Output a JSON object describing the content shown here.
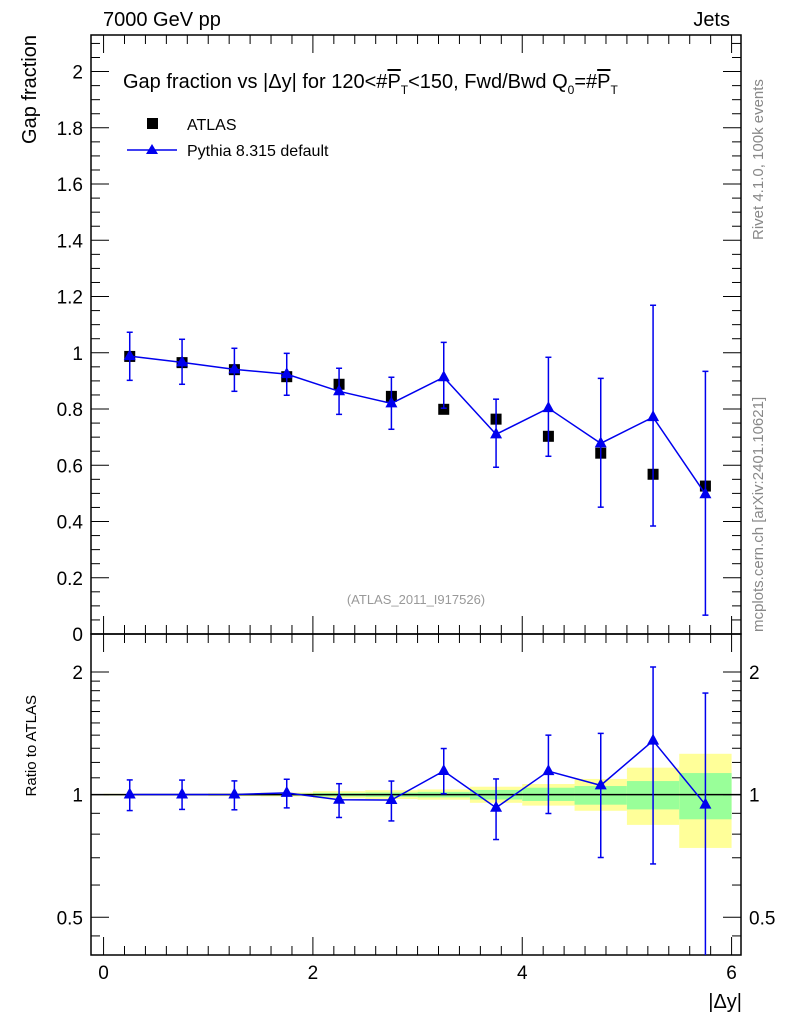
{
  "header": {
    "left": "7000 GeV pp",
    "right": "Jets"
  },
  "side_labels": {
    "rivet": "Rivet 4.1.0,  100k events",
    "mcplots": "mcplots.cern.ch [arXiv:2401.10621]"
  },
  "analysis_label": "(ATLAS_2011_I917526)",
  "colors": {
    "data": "#000000",
    "mc": "#0000ee",
    "band_outer": "#ffff99",
    "band_inner": "#99ff99"
  },
  "chart_data": [
    {
      "type": "scatter",
      "title": "Gap fraction vs |Δy| for 120<#P_T<150, Fwd/Bwd Q_0=#P_T",
      "title_parts": {
        "pre": "Gap fraction vs |Δy| for 120<#",
        "p1": "P",
        "t1": "T",
        "mid": "<150, Fwd/Bwd Q",
        "q0": "0",
        "eq": "=#",
        "p2": "P",
        "t2": "T"
      },
      "xlabel": "|Δy|",
      "ylabel": "Gap fraction",
      "xlim": [
        -0.12,
        6.09
      ],
      "ylim": [
        0,
        2.13
      ],
      "yticks": [
        "0",
        "0.2",
        "0.4",
        "0.6",
        "0.8",
        "1",
        "1.2",
        "1.4",
        "1.6",
        "1.8",
        "2"
      ],
      "legend": {
        "placement": "top-left",
        "entries": [
          "ATLAS",
          "Pythia 8.315 default"
        ]
      },
      "x": [
        0.25,
        0.75,
        1.25,
        1.75,
        2.25,
        2.75,
        3.25,
        3.75,
        4.25,
        4.75,
        5.25,
        5.75
      ],
      "series": [
        {
          "name": "ATLAS",
          "marker": "square",
          "values": [
            0.987,
            0.965,
            0.94,
            0.915,
            0.888,
            0.845,
            0.799,
            0.764,
            0.703,
            0.643,
            0.568,
            0.526
          ]
        },
        {
          "name": "Pythia 8.315 default",
          "marker": "triangle",
          "values": [
            0.988,
            0.966,
            0.941,
            0.924,
            0.863,
            0.82,
            0.913,
            0.71,
            0.803,
            0.678,
            0.771,
            0.497
          ],
          "err_low": [
            0.902,
            0.888,
            0.863,
            0.849,
            0.781,
            0.728,
            0.803,
            0.593,
            0.632,
            0.451,
            0.384,
            0.067
          ],
          "err_high": [
            1.073,
            1.048,
            1.016,
            0.998,
            0.945,
            0.913,
            1.037,
            0.835,
            0.984,
            0.909,
            1.169,
            0.934
          ]
        }
      ]
    },
    {
      "type": "line",
      "ylabel": "Ratio to ATLAS",
      "xlabel": "|Δy|",
      "yscale": "log",
      "ylim": [
        0.404,
        2.48
      ],
      "xticks": [
        "0",
        "2",
        "4",
        "6"
      ],
      "yticks": [
        "0.5",
        "1",
        "2"
      ],
      "bins": [
        [
          0,
          0.5
        ],
        [
          0.5,
          1
        ],
        [
          1,
          1.5
        ],
        [
          1.5,
          2
        ],
        [
          2,
          2.5
        ],
        [
          2.5,
          3
        ],
        [
          3,
          3.5
        ],
        [
          3.5,
          4
        ],
        [
          4,
          4.5
        ],
        [
          4.5,
          5
        ],
        [
          5,
          5.5
        ],
        [
          5.5,
          6
        ]
      ],
      "band_outer": [
        [
          0.995,
          1.005
        ],
        [
          0.995,
          1.005
        ],
        [
          0.992,
          1.008
        ],
        [
          0.99,
          1.012
        ],
        [
          0.98,
          1.02
        ],
        [
          0.976,
          1.025
        ],
        [
          0.972,
          1.03
        ],
        [
          0.955,
          1.046
        ],
        [
          0.94,
          1.062
        ],
        [
          0.913,
          1.093
        ],
        [
          0.843,
          1.165
        ],
        [
          0.74,
          1.26
        ]
      ],
      "band_inner": [
        [
          0.997,
          1.003
        ],
        [
          0.997,
          1.003
        ],
        [
          0.996,
          1.004
        ],
        [
          0.995,
          1.006
        ],
        [
          0.99,
          1.01
        ],
        [
          0.988,
          1.012
        ],
        [
          0.985,
          1.016
        ],
        [
          0.973,
          1.027
        ],
        [
          0.965,
          1.04
        ],
        [
          0.945,
          1.05
        ],
        [
          0.92,
          1.08
        ],
        [
          0.87,
          1.13
        ]
      ],
      "x": [
        0.25,
        0.75,
        1.25,
        1.75,
        2.25,
        2.75,
        3.25,
        3.75,
        4.25,
        4.75,
        5.25,
        5.75
      ],
      "series": [
        {
          "name": "Pythia 8.315 default",
          "values": [
            1.001,
            1.001,
            1.001,
            1.01,
            0.972,
            0.97,
            1.143,
            0.929,
            1.142,
            1.054,
            1.357,
            0.945
          ],
          "err_low": [
            0.914,
            0.92,
            0.918,
            0.928,
            0.879,
            0.862,
            1.005,
            0.776,
            0.899,
            0.701,
            0.676,
            0.127
          ],
          "err_high": [
            1.087,
            1.086,
            1.081,
            1.091,
            1.064,
            1.08,
            1.298,
            1.093,
            1.4,
            1.414,
            2.058,
            1.776
          ]
        }
      ]
    }
  ]
}
